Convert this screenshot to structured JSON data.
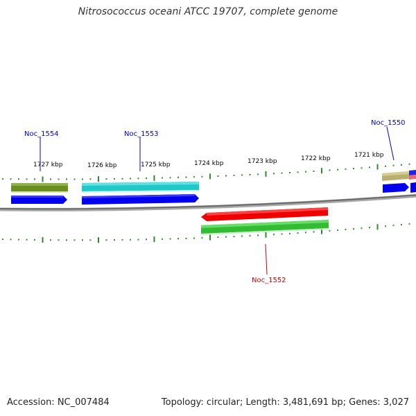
{
  "title": "Nitrosococcus oceani ATCC 19707, complete genome",
  "footer": {
    "accession": "Accession: NC_007484",
    "summary": "Topology: circular; Length: 3,481,691 bp; Genes: 3,027"
  },
  "kbp_labels": [
    "1727 kbp",
    "1726 kbp",
    "1725 kbp",
    "1724 kbp",
    "1723 kbp",
    "1722 kbp",
    "1721 kbp"
  ],
  "gene_labels": {
    "noc1554": "Noc_1554",
    "noc1553": "Noc_1553",
    "noc1552": "Noc_1552",
    "noc1550": "Noc_1550"
  },
  "colors": {
    "backbone": "#808080",
    "tick": "#2e8b2e",
    "label_blue": "#0000cc",
    "label_red": "#cc0000",
    "olive": "#6b8e23",
    "cyan": "#20c8c8",
    "blue": "#0000ee",
    "red": "#ee0000",
    "green": "#33bb33",
    "khaki": "#b8b070"
  }
}
